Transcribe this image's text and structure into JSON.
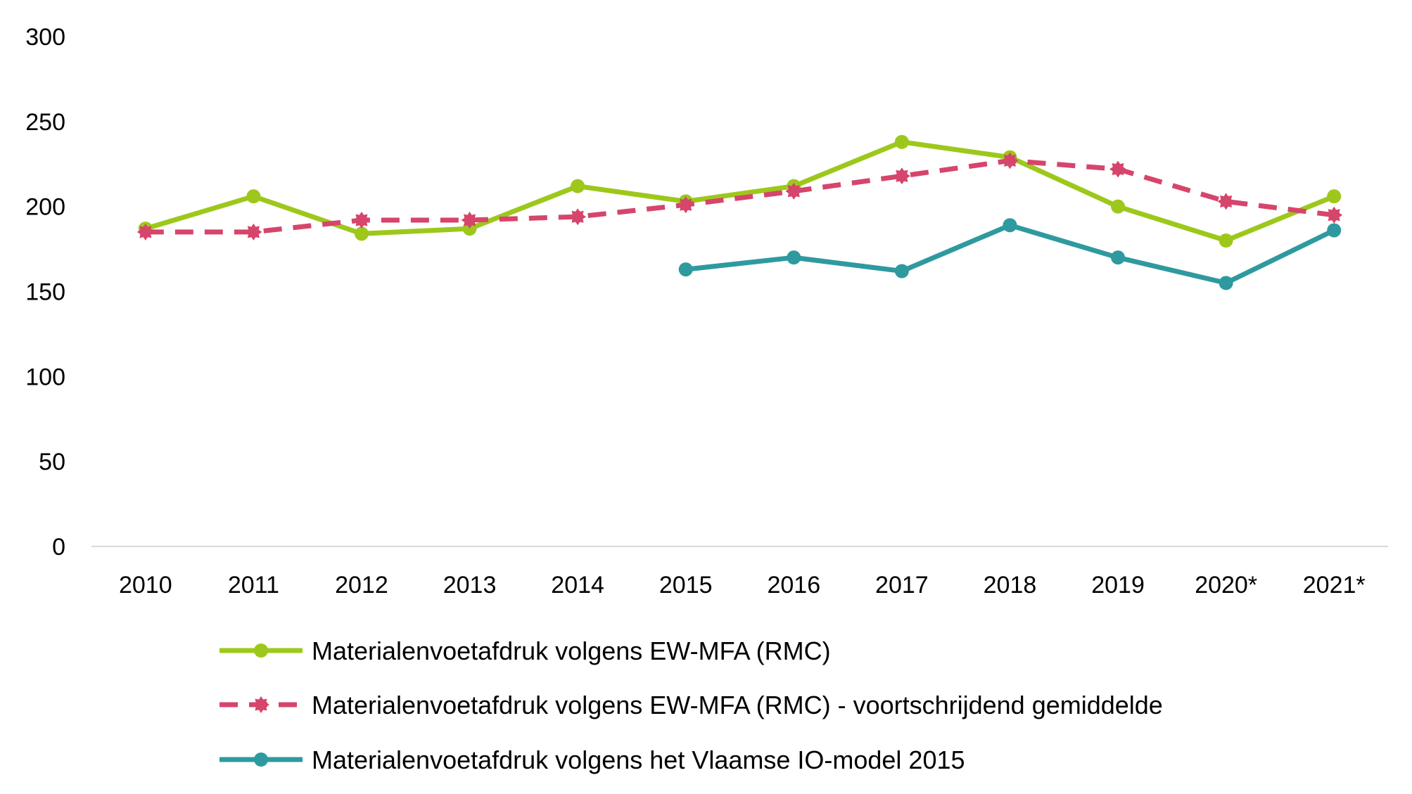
{
  "chart_data": {
    "type": "line",
    "title": "",
    "xlabel": "",
    "ylabel": "",
    "categories": [
      "2010",
      "2011",
      "2012",
      "2013",
      "2014",
      "2015",
      "2016",
      "2017",
      "2018",
      "2019",
      "2020*",
      "2021*"
    ],
    "ylim": [
      0,
      300
    ],
    "yticks": [
      0,
      50,
      100,
      150,
      200,
      250,
      300
    ],
    "grid": false,
    "legend_position": "bottom",
    "series": [
      {
        "name": "Materialenvoetafdruk volgens EW-MFA (RMC)",
        "color": "#9dc81b",
        "style": "solid",
        "marker": "circle",
        "values": [
          187,
          206,
          184,
          187,
          212,
          203,
          212,
          238,
          229,
          200,
          180,
          206
        ]
      },
      {
        "name": "Materialenvoetafdruk volgens EW-MFA (RMC) - voortschrijdend gemiddelde",
        "color": "#d6456b",
        "style": "dashed",
        "marker": "star",
        "values": [
          185,
          185,
          192,
          192,
          194,
          201,
          209,
          218,
          227,
          222,
          203,
          195
        ]
      },
      {
        "name": "Materialenvoetafdruk volgens het Vlaamse IO-model 2015",
        "color": "#2e9a9f",
        "style": "solid",
        "marker": "circle",
        "values": [
          null,
          null,
          null,
          null,
          null,
          163,
          170,
          162,
          189,
          170,
          155,
          186
        ]
      }
    ]
  }
}
